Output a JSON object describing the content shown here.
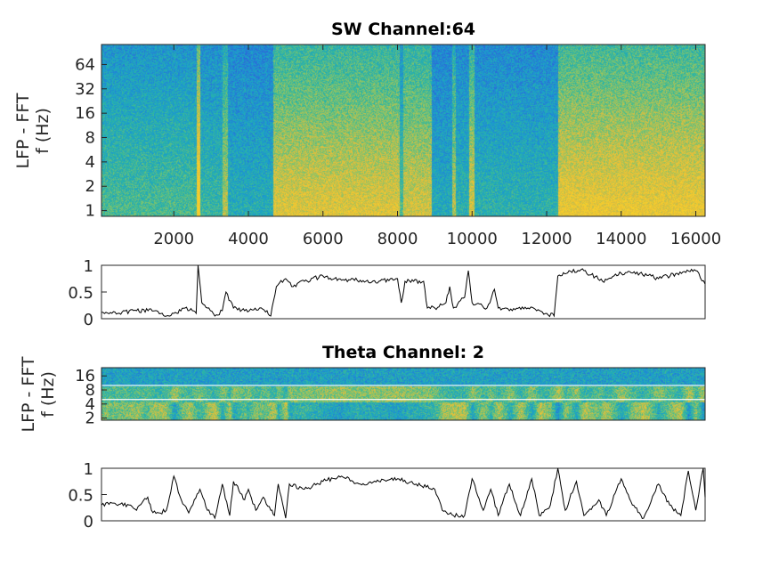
{
  "chart_data": [
    {
      "type": "heatmap",
      "title": "SW Channel:64",
      "ylabel_lines": [
        "LFP - FFT",
        "f (Hz)"
      ],
      "xlim": [
        60,
        16250
      ],
      "ylim": [
        0.85,
        113
      ],
      "yscale": "log2",
      "xticks": [
        2000,
        4000,
        6000,
        8000,
        10000,
        12000,
        14000,
        16000
      ],
      "xtick_labels": [
        "2000",
        "4000",
        "6000",
        "8000",
        "10000",
        "12000",
        "14000",
        "16000"
      ],
      "yticks": [
        1,
        2,
        4,
        8,
        16,
        32,
        64
      ],
      "ytick_labels": [
        "1",
        "2",
        "4",
        "8",
        "16",
        "32",
        "64"
      ],
      "colormap": [
        "#2c69d8",
        "#1a9bd0",
        "#2bb5a4",
        "#84c46a",
        "#e4bd3b",
        "#f7d02b"
      ],
      "low_freq_power_segments": [
        [
          60,
          2600,
          0.35
        ],
        [
          2600,
          2700,
          0.95
        ],
        [
          2700,
          3300,
          0.3
        ],
        [
          3300,
          3450,
          0.6
        ],
        [
          3450,
          4650,
          0.22
        ],
        [
          4650,
          8050,
          0.72
        ],
        [
          8050,
          8150,
          0.35
        ],
        [
          8150,
          8900,
          0.68
        ],
        [
          8900,
          9450,
          0.2
        ],
        [
          9450,
          9550,
          0.6
        ],
        [
          9550,
          9900,
          0.25
        ],
        [
          9900,
          10050,
          0.7
        ],
        [
          10050,
          12300,
          0.25
        ],
        [
          12300,
          16250,
          0.78
        ]
      ]
    },
    {
      "type": "line",
      "ylim": [
        0,
        1
      ],
      "xlim": [
        60,
        16250
      ],
      "yticks": [
        0,
        0.5,
        1
      ],
      "ytick_labels": [
        "0",
        "0.5",
        "1"
      ],
      "x": [
        60,
        500,
        1000,
        1500,
        1800,
        2000,
        2300,
        2500,
        2600,
        2650,
        2750,
        2900,
        3100,
        3300,
        3400,
        3600,
        3900,
        4300,
        4500,
        4600,
        4750,
        5000,
        5200,
        5500,
        6000,
        6500,
        7000,
        7500,
        8000,
        8100,
        8200,
        8700,
        8800,
        9000,
        9300,
        9400,
        9500,
        9800,
        9900,
        10000,
        10400,
        10600,
        10700,
        11000,
        11500,
        12000,
        12200,
        12300,
        12600,
        13000,
        13500,
        14000,
        14500,
        15000,
        15500,
        16000,
        16250
      ],
      "y": [
        0.12,
        0.1,
        0.15,
        0.15,
        0.05,
        0.1,
        0.2,
        0.15,
        0.1,
        1.0,
        0.3,
        0.2,
        0.05,
        0.15,
        0.5,
        0.2,
        0.15,
        0.2,
        0.15,
        0.05,
        0.6,
        0.75,
        0.6,
        0.7,
        0.8,
        0.72,
        0.72,
        0.7,
        0.75,
        0.3,
        0.7,
        0.7,
        0.2,
        0.2,
        0.3,
        0.6,
        0.2,
        0.4,
        0.9,
        0.3,
        0.2,
        0.55,
        0.2,
        0.15,
        0.2,
        0.1,
        0.05,
        0.8,
        0.9,
        0.9,
        0.7,
        0.85,
        0.85,
        0.75,
        0.85,
        0.9,
        0.65
      ]
    },
    {
      "type": "heatmap",
      "title": "Theta Channel: 2",
      "ylabel_lines": [
        "LFP - FFT",
        "f (Hz)"
      ],
      "xlim": [
        60,
        16250
      ],
      "ylim": [
        1.8,
        24
      ],
      "yscale": "log2",
      "yticks": [
        2,
        4,
        8,
        16
      ],
      "ytick_labels": [
        "2",
        "4",
        "8",
        "16"
      ],
      "band_lines_hz": [
        5,
        10
      ]
    },
    {
      "type": "line",
      "ylim": [
        0,
        1
      ],
      "xlim": [
        60,
        16250
      ],
      "yticks": [
        0,
        0.5,
        1
      ],
      "ytick_labels": [
        "0",
        "0.5",
        "1"
      ],
      "x": [
        60,
        300,
        800,
        1000,
        1300,
        1400,
        1600,
        1800,
        2000,
        2200,
        2400,
        2700,
        2900,
        3100,
        3300,
        3500,
        3600,
        3900,
        4000,
        4200,
        4400,
        4600,
        4700,
        4800,
        5000,
        5100,
        5500,
        6000,
        6500,
        7000,
        7500,
        8000,
        8500,
        9000,
        9200,
        9500,
        9800,
        10000,
        10300,
        10500,
        10700,
        11000,
        11300,
        11600,
        11800,
        12100,
        12300,
        12500,
        12800,
        13000,
        13400,
        13600,
        14000,
        14300,
        14600,
        15000,
        15300,
        15600,
        15800,
        16000,
        16200,
        16250
      ],
      "y": [
        0.3,
        0.35,
        0.3,
        0.2,
        0.45,
        0.2,
        0.15,
        0.2,
        0.85,
        0.4,
        0.15,
        0.6,
        0.2,
        0.05,
        0.7,
        0.1,
        0.75,
        0.4,
        0.6,
        0.2,
        0.45,
        0.2,
        0.1,
        0.7,
        0.05,
        0.7,
        0.6,
        0.75,
        0.85,
        0.7,
        0.75,
        0.8,
        0.7,
        0.6,
        0.2,
        0.1,
        0.1,
        0.8,
        0.2,
        0.6,
        0.1,
        0.7,
        0.1,
        0.8,
        0.1,
        0.3,
        1.0,
        0.2,
        0.75,
        0.1,
        0.4,
        0.1,
        0.8,
        0.3,
        0.05,
        0.7,
        0.3,
        0.1,
        0.95,
        0.2,
        1.0,
        0.45
      ]
    }
  ]
}
